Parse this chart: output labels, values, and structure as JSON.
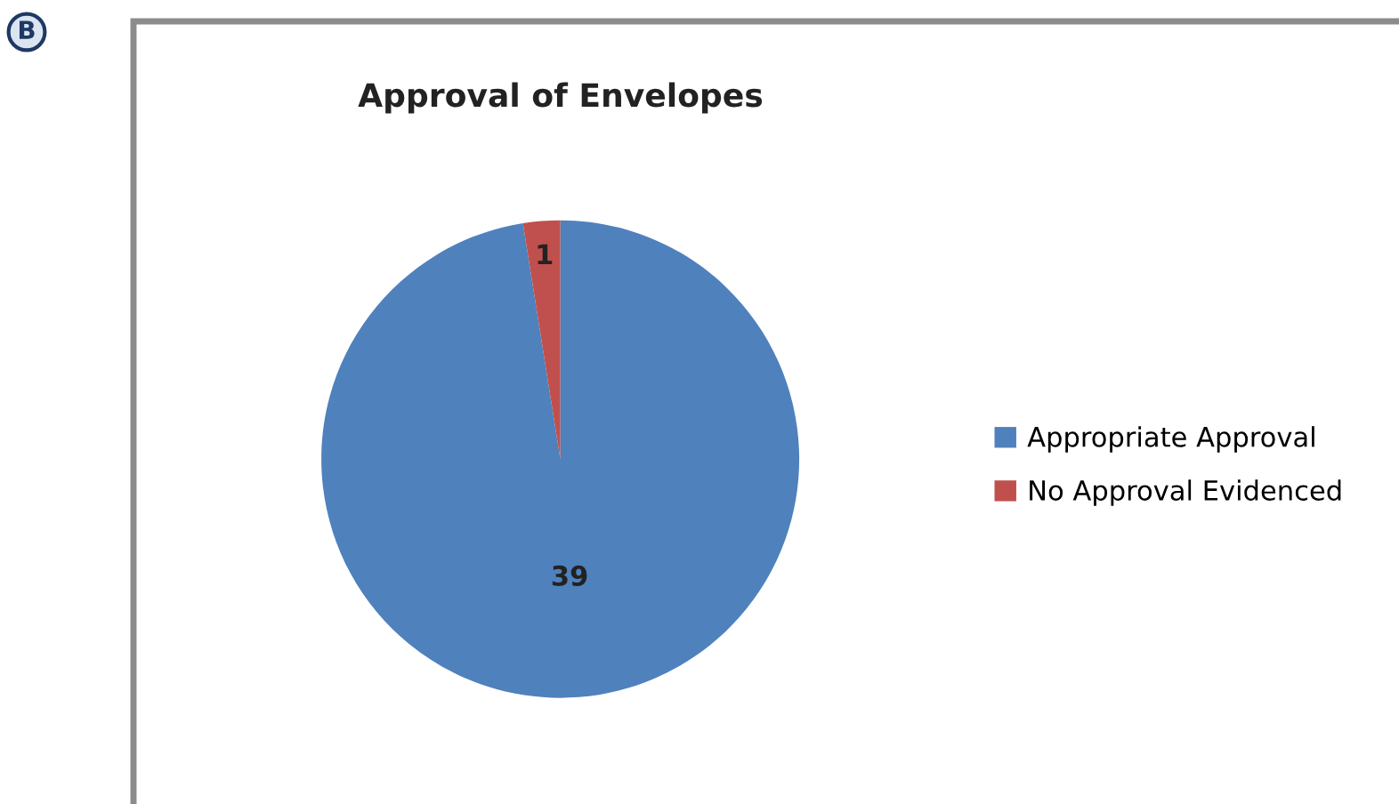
{
  "chart_data": {
    "type": "pie",
    "title": "Approval of Envelopes",
    "categories": [
      "Appropriate Approval",
      "No Approval Evidenced"
    ],
    "values": [
      39,
      1
    ],
    "colors": [
      "#4f81bd",
      "#c0504d"
    ],
    "data_labels": true,
    "legend": "right",
    "annotations": [
      "B"
    ]
  }
}
